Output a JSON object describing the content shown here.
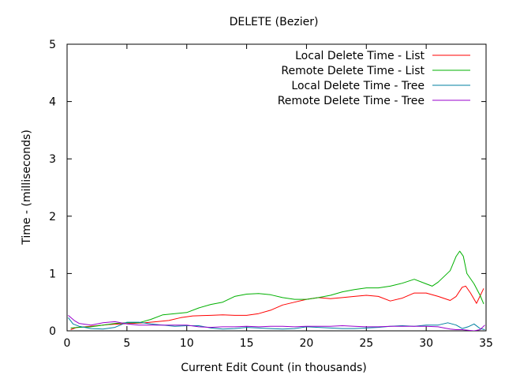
{
  "chart_data": {
    "type": "line",
    "title": "DELETE (Bezier)",
    "xlabel": "Current Edit Count (in thousands)",
    "ylabel": "Time - (milliseconds)",
    "xlim": [
      0,
      35
    ],
    "ylim": [
      0,
      5
    ],
    "xticks": [
      "0",
      "5",
      "10",
      "15",
      "20",
      "25",
      "30",
      "35"
    ],
    "yticks": [
      "0",
      "1",
      "2",
      "3",
      "4",
      "5"
    ],
    "grid": false,
    "legend": "top-right",
    "series": [
      {
        "name": "Local Delete Time - List",
        "color": "#ff0000",
        "points": [
          [
            0.3,
            0.02
          ],
          [
            0.8,
            0.06
          ],
          [
            1.5,
            0.07
          ],
          [
            2.5,
            0.09
          ],
          [
            3.5,
            0.11
          ],
          [
            4.5,
            0.12
          ],
          [
            5.5,
            0.13
          ],
          [
            6.5,
            0.14
          ],
          [
            7.5,
            0.16
          ],
          [
            8.5,
            0.18
          ],
          [
            9.5,
            0.23
          ],
          [
            10.5,
            0.26
          ],
          [
            12,
            0.27
          ],
          [
            13,
            0.28
          ],
          [
            14,
            0.27
          ],
          [
            15,
            0.27
          ],
          [
            16,
            0.3
          ],
          [
            17,
            0.36
          ],
          [
            18,
            0.45
          ],
          [
            19,
            0.5
          ],
          [
            20,
            0.55
          ],
          [
            21,
            0.58
          ],
          [
            22,
            0.56
          ],
          [
            23,
            0.58
          ],
          [
            24,
            0.6
          ],
          [
            25,
            0.62
          ],
          [
            26,
            0.6
          ],
          [
            27,
            0.52
          ],
          [
            28,
            0.57
          ],
          [
            29,
            0.66
          ],
          [
            30,
            0.66
          ],
          [
            31,
            0.6
          ],
          [
            32,
            0.53
          ],
          [
            32.5,
            0.6
          ],
          [
            33,
            0.76
          ],
          [
            33.3,
            0.78
          ],
          [
            33.7,
            0.66
          ],
          [
            34.2,
            0.48
          ],
          [
            34.8,
            0.74
          ]
        ]
      },
      {
        "name": "Remote Delete Time - List",
        "color": "#00b000",
        "points": [
          [
            0.3,
            0.05
          ],
          [
            1,
            0.06
          ],
          [
            2,
            0.07
          ],
          [
            3,
            0.1
          ],
          [
            4,
            0.13
          ],
          [
            5,
            0.14
          ],
          [
            6,
            0.14
          ],
          [
            7,
            0.2
          ],
          [
            8,
            0.28
          ],
          [
            9,
            0.3
          ],
          [
            10,
            0.32
          ],
          [
            11,
            0.4
          ],
          [
            12,
            0.46
          ],
          [
            13,
            0.5
          ],
          [
            14,
            0.6
          ],
          [
            15,
            0.64
          ],
          [
            16,
            0.65
          ],
          [
            17,
            0.63
          ],
          [
            18,
            0.58
          ],
          [
            19,
            0.55
          ],
          [
            20,
            0.55
          ],
          [
            21,
            0.58
          ],
          [
            22,
            0.62
          ],
          [
            23,
            0.68
          ],
          [
            24,
            0.72
          ],
          [
            25,
            0.75
          ],
          [
            26,
            0.75
          ],
          [
            27,
            0.78
          ],
          [
            28,
            0.83
          ],
          [
            29,
            0.9
          ],
          [
            30,
            0.82
          ],
          [
            30.5,
            0.78
          ],
          [
            31,
            0.85
          ],
          [
            32,
            1.05
          ],
          [
            32.5,
            1.3
          ],
          [
            32.8,
            1.39
          ],
          [
            33.1,
            1.3
          ],
          [
            33.4,
            1.0
          ],
          [
            34,
            0.82
          ],
          [
            34.5,
            0.62
          ],
          [
            34.8,
            0.47
          ]
        ]
      },
      {
        "name": "Local Delete Time - Tree",
        "color": "#0080a0",
        "points": [
          [
            0.1,
            0.23
          ],
          [
            0.5,
            0.12
          ],
          [
            1,
            0.08
          ],
          [
            2,
            0.04
          ],
          [
            3,
            0.03
          ],
          [
            4,
            0.06
          ],
          [
            5,
            0.15
          ],
          [
            6,
            0.15
          ],
          [
            7,
            0.12
          ],
          [
            8,
            0.1
          ],
          [
            9,
            0.08
          ],
          [
            10,
            0.09
          ],
          [
            11,
            0.09
          ],
          [
            12,
            0.05
          ],
          [
            13,
            0.03
          ],
          [
            14,
            0.04
          ],
          [
            15,
            0.06
          ],
          [
            16,
            0.05
          ],
          [
            17,
            0.04
          ],
          [
            18,
            0.03
          ],
          [
            19,
            0.04
          ],
          [
            20,
            0.07
          ],
          [
            21,
            0.06
          ],
          [
            22,
            0.05
          ],
          [
            23,
            0.04
          ],
          [
            24,
            0.04
          ],
          [
            25,
            0.05
          ],
          [
            26,
            0.06
          ],
          [
            27,
            0.08
          ],
          [
            28,
            0.09
          ],
          [
            29,
            0.08
          ],
          [
            30,
            0.1
          ],
          [
            31,
            0.1
          ],
          [
            31.8,
            0.14
          ],
          [
            32.5,
            0.1
          ],
          [
            33,
            0.04
          ],
          [
            33.5,
            0.07
          ],
          [
            34,
            0.12
          ],
          [
            34.5,
            0.04
          ],
          [
            34.9,
            0.02
          ]
        ]
      },
      {
        "name": "Remote Delete Time - Tree",
        "color": "#9900cc",
        "points": [
          [
            0.1,
            0.27
          ],
          [
            0.6,
            0.18
          ],
          [
            1,
            0.13
          ],
          [
            2,
            0.1
          ],
          [
            3,
            0.14
          ],
          [
            4,
            0.16
          ],
          [
            5,
            0.12
          ],
          [
            6,
            0.1
          ],
          [
            7,
            0.1
          ],
          [
            8,
            0.1
          ],
          [
            9,
            0.1
          ],
          [
            10,
            0.1
          ],
          [
            11,
            0.07
          ],
          [
            12,
            0.06
          ],
          [
            13,
            0.07
          ],
          [
            14,
            0.07
          ],
          [
            15,
            0.08
          ],
          [
            16,
            0.07
          ],
          [
            17,
            0.08
          ],
          [
            18,
            0.08
          ],
          [
            19,
            0.07
          ],
          [
            20,
            0.08
          ],
          [
            21,
            0.08
          ],
          [
            22,
            0.08
          ],
          [
            23,
            0.09
          ],
          [
            24,
            0.08
          ],
          [
            25,
            0.07
          ],
          [
            26,
            0.07
          ],
          [
            27,
            0.08
          ],
          [
            28,
            0.08
          ],
          [
            29,
            0.08
          ],
          [
            30,
            0.08
          ],
          [
            31,
            0.07
          ],
          [
            31.5,
            0.05
          ],
          [
            32,
            0.03
          ],
          [
            32.5,
            0.02
          ],
          [
            33,
            0.02
          ],
          [
            33.5,
            0.01
          ],
          [
            34,
            0.0
          ],
          [
            34.5,
            0.02
          ],
          [
            34.9,
            0.1
          ]
        ]
      }
    ]
  }
}
